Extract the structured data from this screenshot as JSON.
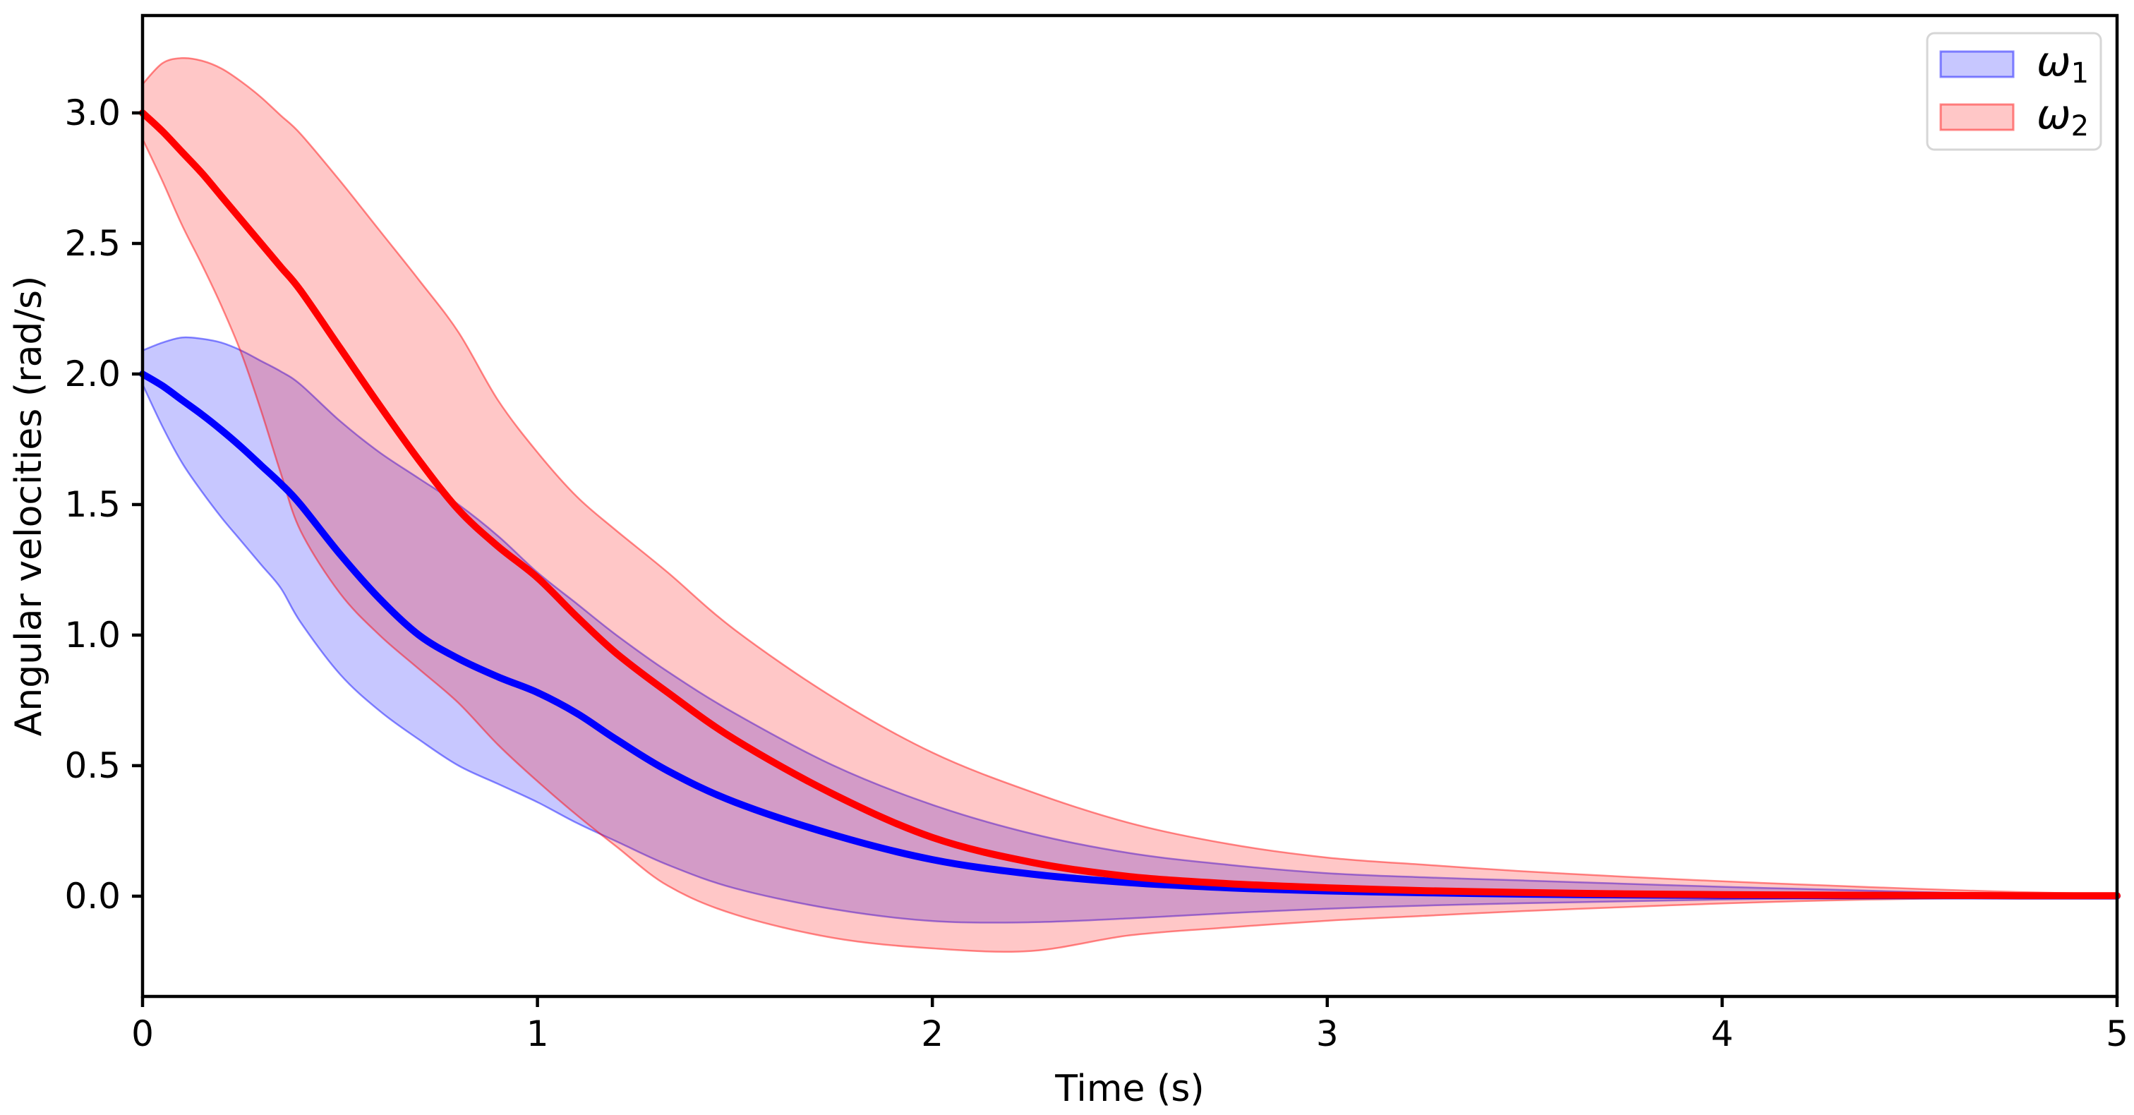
{
  "figure": {
    "background": "#ffffff",
    "description": "Monte-Carlo style simulation plot of two angular velocities with mean lines and uncertainty bands"
  },
  "chart_data": {
    "type": "line",
    "title": "",
    "xlabel": "Time (s)",
    "ylabel": "Angular velocities (rad/s)",
    "xlim": [
      0,
      5
    ],
    "ylim": [
      -0.384,
      3.373
    ],
    "grid": false,
    "legend_position": "upper right",
    "x_ticks": [
      {
        "v": 0,
        "label": "0"
      },
      {
        "v": 1,
        "label": "1"
      },
      {
        "v": 2,
        "label": "2"
      },
      {
        "v": 3,
        "label": "3"
      },
      {
        "v": 4,
        "label": "4"
      },
      {
        "v": 5,
        "label": "5"
      }
    ],
    "y_ticks": [
      {
        "v": 0.0,
        "label": "0.0"
      },
      {
        "v": 0.5,
        "label": "0.5"
      },
      {
        "v": 1.0,
        "label": "1.0"
      },
      {
        "v": 1.5,
        "label": "1.5"
      },
      {
        "v": 2.0,
        "label": "2.0"
      },
      {
        "v": 2.5,
        "label": "2.5"
      },
      {
        "v": 3.0,
        "label": "3.0"
      }
    ],
    "t": [
      0,
      0.05,
      0.1,
      0.15,
      0.2,
      0.25,
      0.3,
      0.35,
      0.4,
      0.5,
      0.6,
      0.7,
      0.8,
      0.9,
      1.0,
      1.1,
      1.2,
      1.33,
      1.5,
      1.75,
      2.0,
      2.25,
      2.5,
      2.75,
      3.0,
      3.25,
      3.5,
      3.75,
      4.0,
      4.25,
      4.5,
      4.75,
      5.0
    ],
    "series": [
      {
        "name": "omega1",
        "label_base": "ω",
        "label_sub": "1",
        "line_color": "#0000ff",
        "fill_color": "rgba(0,0,255,0.22)",
        "edge_color": "rgba(0,0,255,0.45)",
        "mean": [
          2.0,
          1.955,
          1.9,
          1.845,
          1.785,
          1.72,
          1.65,
          1.58,
          1.5,
          1.31,
          1.14,
          1.0,
          0.91,
          0.84,
          0.78,
          0.7,
          0.6,
          0.48,
          0.36,
          0.235,
          0.14,
          0.085,
          0.052,
          0.032,
          0.02,
          0.013,
          0.008,
          0.005,
          0.003,
          0.002,
          0.002,
          0.001,
          0.001
        ],
        "upper": [
          2.09,
          2.12,
          2.14,
          2.135,
          2.12,
          2.09,
          2.05,
          2.01,
          1.96,
          1.82,
          1.7,
          1.6,
          1.5,
          1.38,
          1.24,
          1.12,
          1.0,
          0.86,
          0.7,
          0.5,
          0.35,
          0.24,
          0.165,
          0.12,
          0.088,
          0.072,
          0.06,
          0.048,
          0.036,
          0.026,
          0.016,
          0.008,
          0.004
        ],
        "lower": [
          1.96,
          1.8,
          1.66,
          1.55,
          1.45,
          1.36,
          1.27,
          1.18,
          1.05,
          0.85,
          0.71,
          0.6,
          0.5,
          0.43,
          0.36,
          0.28,
          0.21,
          0.12,
          0.03,
          -0.05,
          -0.095,
          -0.1,
          -0.085,
          -0.065,
          -0.048,
          -0.036,
          -0.027,
          -0.02,
          -0.013,
          -0.008,
          -0.005,
          -0.003,
          -0.002
        ]
      },
      {
        "name": "omega2",
        "label_base": "ω",
        "label_sub": "2",
        "line_color": "#ff0000",
        "fill_color": "rgba(255,0,0,0.22)",
        "edge_color": "rgba(255,0,0,0.45)",
        "mean": [
          3.0,
          2.93,
          2.85,
          2.77,
          2.68,
          2.59,
          2.5,
          2.41,
          2.32,
          2.1,
          1.88,
          1.67,
          1.48,
          1.34,
          1.22,
          1.07,
          0.93,
          0.78,
          0.6,
          0.39,
          0.225,
          0.13,
          0.075,
          0.048,
          0.032,
          0.021,
          0.014,
          0.009,
          0.006,
          0.004,
          0.003,
          0.002,
          0.002
        ],
        "upper": [
          3.11,
          3.19,
          3.21,
          3.2,
          3.17,
          3.12,
          3.06,
          2.99,
          2.92,
          2.74,
          2.55,
          2.36,
          2.16,
          1.9,
          1.7,
          1.53,
          1.4,
          1.24,
          1.02,
          0.76,
          0.55,
          0.4,
          0.28,
          0.2,
          0.148,
          0.12,
          0.095,
          0.075,
          0.057,
          0.042,
          0.028,
          0.016,
          0.008
        ],
        "lower": [
          2.9,
          2.74,
          2.57,
          2.42,
          2.26,
          2.08,
          1.86,
          1.62,
          1.4,
          1.16,
          1.0,
          0.87,
          0.74,
          0.58,
          0.44,
          0.31,
          0.19,
          0.04,
          -0.07,
          -0.16,
          -0.2,
          -0.21,
          -0.15,
          -0.12,
          -0.094,
          -0.075,
          -0.057,
          -0.042,
          -0.028,
          -0.017,
          -0.01,
          -0.006,
          -0.003
        ]
      }
    ],
    "style": {
      "spine_color": "#000000",
      "legend_border_color": "#d6d6d6",
      "legend_background": "#ffffff"
    }
  }
}
